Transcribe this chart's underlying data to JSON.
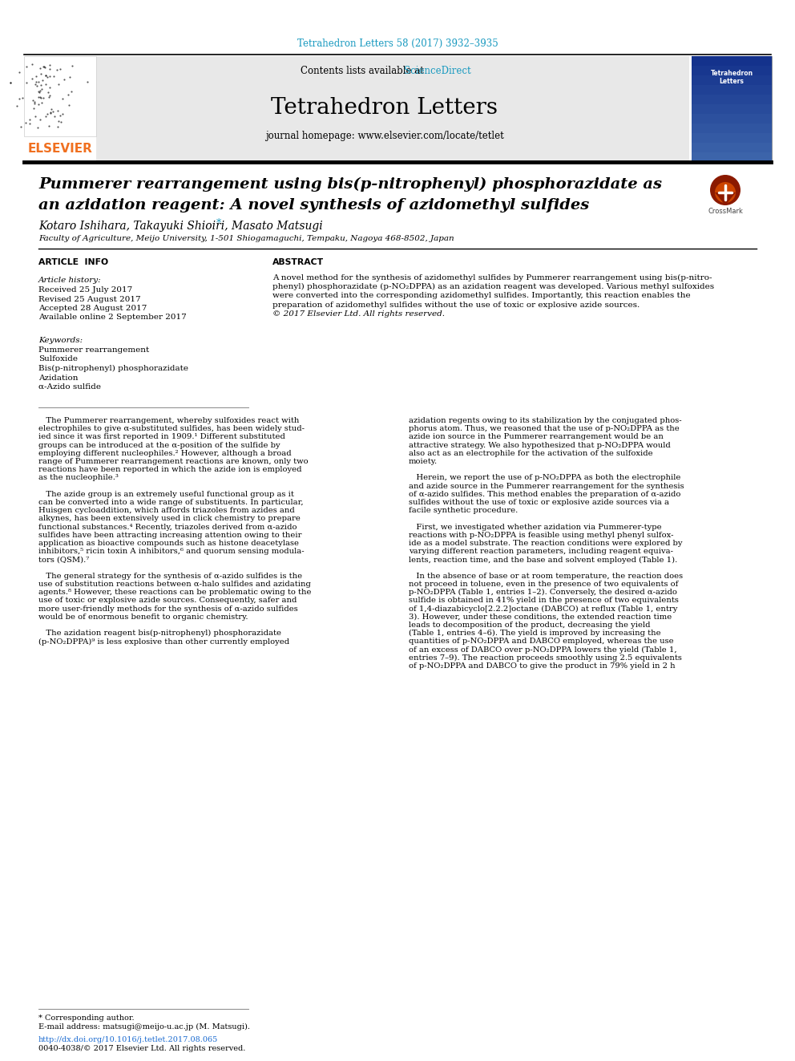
{
  "page_bg": "#ffffff",
  "top_journal_text": "Tetrahedron Letters 58 (2017) 3932–3935",
  "top_journal_color": "#1a9ac0",
  "header_bg": "#e8e8e8",
  "header_contents": "Contents lists available at ",
  "header_sciencedirect": "ScienceDirect",
  "header_sciencedirect_color": "#1a9ac0",
  "journal_title": "Tetrahedron Letters",
  "journal_homepage": "journal homepage: www.elsevier.com/locate/tetlet",
  "elsevier_color": "#f07020",
  "article_title_line1": "Pummerer rearrangement using bis(p-nitrophenyl) phosphorazidate as",
  "article_title_line2": "an azidation reagent: A novel synthesis of azidomethyl sulfides",
  "authors": "Kotaro Ishihara, Takayuki Shioiri, Masato Matsugi ",
  "affiliation": "Faculty of Agriculture, Meijo University, 1-501 Shiogamaguchi, Tempaku, Nagoya 468-8502, Japan",
  "article_info_header": "ARTICLE  INFO",
  "abstract_header": "ABSTRACT",
  "article_history_label": "Article history:",
  "received": "Received 25 July 2017",
  "revised": "Revised 25 August 2017",
  "accepted": "Accepted 28 August 2017",
  "available": "Available online 2 September 2017",
  "keywords_label": "Keywords:",
  "keyword1": "Pummerer rearrangement",
  "keyword2": "Sulfoxide",
  "keyword3": "Bis(p-nitrophenyl) phosphorazidate",
  "keyword4": "Azidation",
  "keyword5": "α-Azido sulfide",
  "footer_text1": "* Corresponding author.",
  "footer_text2": "E-mail address: matsugi@meijo-u.ac.jp (M. Matsugi).",
  "footer_url": "http://dx.doi.org/10.1016/j.tetlet.2017.08.065",
  "footer_copyright": "0040-4038/© 2017 Elsevier Ltd. All rights reserved.",
  "footer_url_color": "#1a6ad0",
  "left_paragraphs": [
    "   The Pummerer rearrangement, whereby sulfoxides react with",
    "electrophiles to give α-substituted sulfides, has been widely stud-",
    "ied since it was first reported in 1909.¹ Different substituted",
    "groups can be introduced at the α-position of the sulfide by",
    "employing different nucleophiles.² However, although a broad",
    "range of Pummerer rearrangement reactions are known, only two",
    "reactions have been reported in which the azide ion is employed",
    "as the nucleophile.³",
    "",
    "   The azide group is an extremely useful functional group as it",
    "can be converted into a wide range of substituents. In particular,",
    "Huisgen cycloaddition, which affords triazoles from azides and",
    "alkynes, has been extensively used in click chemistry to prepare",
    "functional substances.⁴ Recently, triazoles derived from α-azido",
    "sulfides have been attracting increasing attention owing to their",
    "application as bioactive compounds such as histone deacetylase",
    "inhibitors,⁵ ricin toxin A inhibitors,⁶ and quorum sensing modula-",
    "tors (QSM).⁷",
    "",
    "   The general strategy for the synthesis of α-azido sulfides is the",
    "use of substitution reactions between α-halo sulfides and azidating",
    "agents.⁸ However, these reactions can be problematic owing to the",
    "use of toxic or explosive azide sources. Consequently, safer and",
    "more user-friendly methods for the synthesis of α-azido sulfides",
    "would be of enormous benefit to organic chemistry.",
    "",
    "   The azidation reagent bis(p-nitrophenyl) phosphorazidate",
    "(p-NO₂DPPA)⁹ is less explosive than other currently employed"
  ],
  "right_paragraphs": [
    "azidation regents owing to its stabilization by the conjugated phos-",
    "phorus atom. Thus, we reasoned that the use of p-NO₂DPPA as the",
    "azide ion source in the Pummerer rearrangement would be an",
    "attractive strategy. We also hypothesized that p-NO₂DPPA would",
    "also act as an electrophile for the activation of the sulfoxide",
    "moiety.",
    "",
    "   Herein, we report the use of p-NO₂DPPA as both the electrophile",
    "and azide source in the Pummerer rearrangement for the synthesis",
    "of α-azido sulfides. This method enables the preparation of α-azido",
    "sulfides without the use of toxic or explosive azide sources via a",
    "facile synthetic procedure.",
    "",
    "   First, we investigated whether azidation via Pummerer-type",
    "reactions with p-NO₂DPPA is feasible using methyl phenyl sulfox-",
    "ide as a model substrate. The reaction conditions were explored by",
    "varying different reaction parameters, including reagent equiva-",
    "lents, reaction time, and the base and solvent employed (Table 1).",
    "",
    "   In the absence of base or at room temperature, the reaction does",
    "not proceed in toluene, even in the presence of two equivalents of",
    "p-NO₂DPPA (Table 1, entries 1–2). Conversely, the desired α-azido",
    "sulfide is obtained in 41% yield in the presence of two equivalents",
    "of 1,4-diazabicyclo[2.2.2]octane (DABCO) at reflux (Table 1, entry",
    "3). However, under these conditions, the extended reaction time",
    "leads to decomposition of the product, decreasing the yield",
    "(Table 1, entries 4–6). The yield is improved by increasing the",
    "quantities of p-NO₂DPPA and DABCO employed, whereas the use",
    "of an excess of DABCO over p-NO₂DPPA lowers the yield (Table 1,",
    "entries 7–9). The reaction proceeds smoothly using 2.5 equivalents",
    "of p-NO₂DPPA and DABCO to give the product in 79% yield in 2 h"
  ],
  "abstract_lines": [
    "A novel method for the synthesis of azidomethyl sulfides by Pummerer rearrangement using bis(p-nitro-",
    "phenyl) phosphorazidate (p-NO₂DPPA) as an azidation reagent was developed. Various methyl sulfoxides",
    "were converted into the corresponding azidomethyl sulfides. Importantly, this reaction enables the",
    "preparation of azidomethyl sulfides without the use of toxic or explosive azide sources.",
    "© 2017 Elsevier Ltd. All rights reserved."
  ]
}
